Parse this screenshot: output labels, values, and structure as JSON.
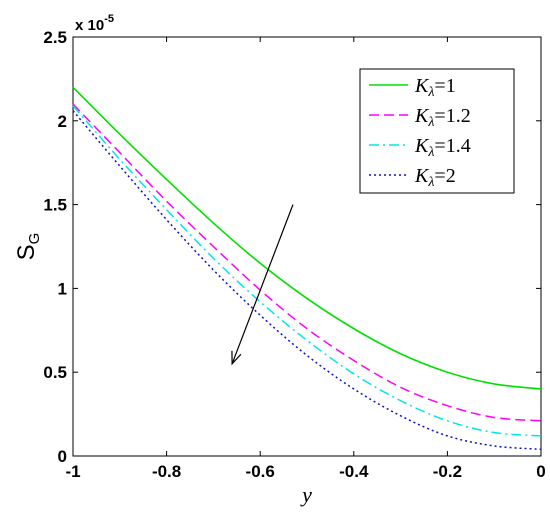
{
  "chart_data": {
    "type": "line",
    "title": "",
    "xlabel": "y",
    "ylabel": {
      "main": "S",
      "sub": "G"
    },
    "y_multiplier": {
      "base": "x 10",
      "exponent": "-5"
    },
    "xlim": [
      -1,
      0
    ],
    "ylim": [
      0,
      2.5
    ],
    "xticks": [
      "-1",
      "-0.8",
      "-0.6",
      "-0.4",
      "-0.2",
      "0"
    ],
    "yticks": [
      "0",
      "0.5",
      "1",
      "1.5",
      "2",
      "2.5"
    ],
    "grid": false,
    "legend_position": "top-right",
    "x": [
      -1,
      -0.9,
      -0.8,
      -0.7,
      -0.6,
      -0.5,
      -0.4,
      -0.3,
      -0.2,
      -0.1,
      0
    ],
    "series": [
      {
        "name": "K_λ=1",
        "legend": {
          "var": "K",
          "sub": "λ",
          "eq": "=1"
        },
        "color": "#00e000",
        "dash": "solid",
        "values": [
          2.2,
          1.92,
          1.65,
          1.39,
          1.15,
          0.94,
          0.76,
          0.61,
          0.5,
          0.43,
          0.4
        ]
      },
      {
        "name": "K_λ=1.2",
        "legend": {
          "var": "K",
          "sub": "λ",
          "eq": "=1.2"
        },
        "color": "#ff00ff",
        "dash": "dashed",
        "values": [
          2.1,
          1.81,
          1.52,
          1.25,
          0.99,
          0.76,
          0.57,
          0.41,
          0.3,
          0.23,
          0.21
        ]
      },
      {
        "name": "K_λ=1.4",
        "legend": {
          "var": "K",
          "sub": "λ",
          "eq": "=1.4"
        },
        "color": "#00e5e5",
        "dash": "dashdot",
        "values": [
          2.09,
          1.77,
          1.47,
          1.18,
          0.92,
          0.69,
          0.49,
          0.33,
          0.21,
          0.14,
          0.12
        ]
      },
      {
        "name": "K_λ=2",
        "legend": {
          "var": "K",
          "sub": "λ",
          "eq": "=2"
        },
        "color": "#1010c0",
        "dash": "dotted",
        "values": [
          2.06,
          1.73,
          1.41,
          1.11,
          0.84,
          0.6,
          0.4,
          0.24,
          0.12,
          0.06,
          0.04
        ]
      }
    ],
    "annotation": {
      "type": "arrow",
      "from": [
        -0.53,
        1.5
      ],
      "to": [
        -0.66,
        0.55
      ]
    }
  }
}
